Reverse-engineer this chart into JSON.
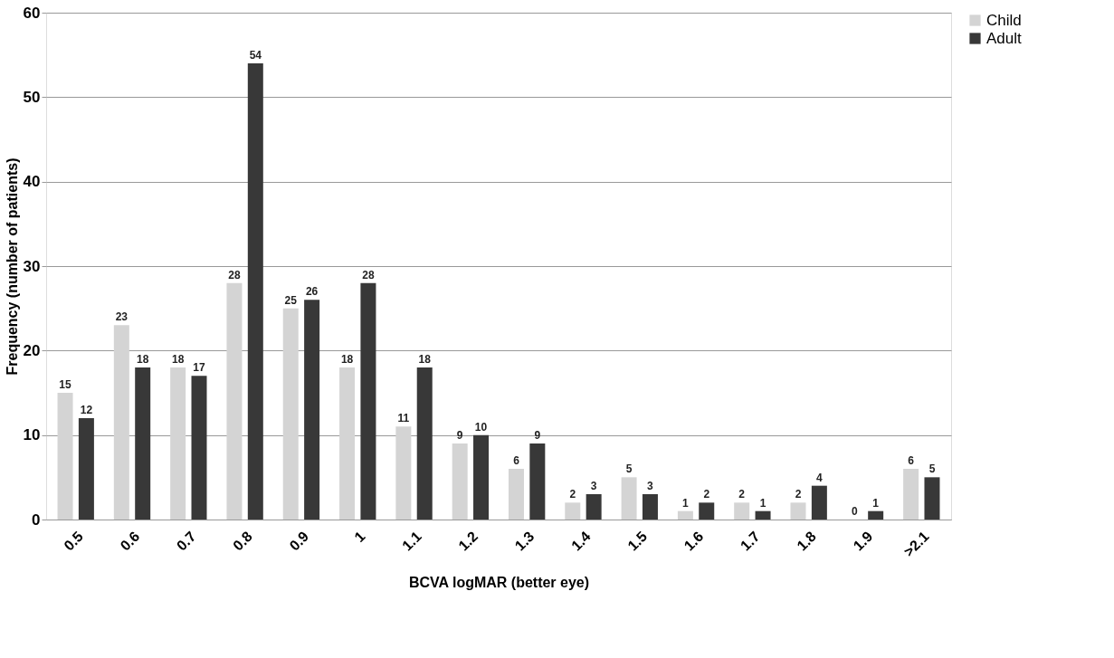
{
  "chart_data": {
    "type": "bar",
    "xlabel": "BCVA logMAR (better eye)",
    "ylabel": "Frequency (number of patients)",
    "categories": [
      "0.5",
      "0.6",
      "0.7",
      "0.8",
      "0.9",
      "1",
      "1.1",
      "1.2",
      "1.3",
      "1.4",
      "1.5",
      "1.6",
      "1.7",
      "1.8",
      "1.9",
      ">2.1"
    ],
    "series": [
      {
        "name": "Child",
        "color": "#d4d4d4",
        "values": [
          15,
          23,
          18,
          28,
          25,
          18,
          11,
          9,
          6,
          2,
          5,
          1,
          2,
          2,
          0,
          6
        ]
      },
      {
        "name": "Adult",
        "color": "#383838",
        "values": [
          12,
          18,
          17,
          54,
          26,
          28,
          18,
          10,
          9,
          3,
          3,
          2,
          1,
          4,
          1,
          5
        ]
      }
    ],
    "ylim": [
      0,
      60
    ],
    "yticks": [
      0,
      10,
      20,
      30,
      40,
      50,
      60
    ],
    "grid": "y",
    "legend": "right",
    "data_labels": true
  }
}
